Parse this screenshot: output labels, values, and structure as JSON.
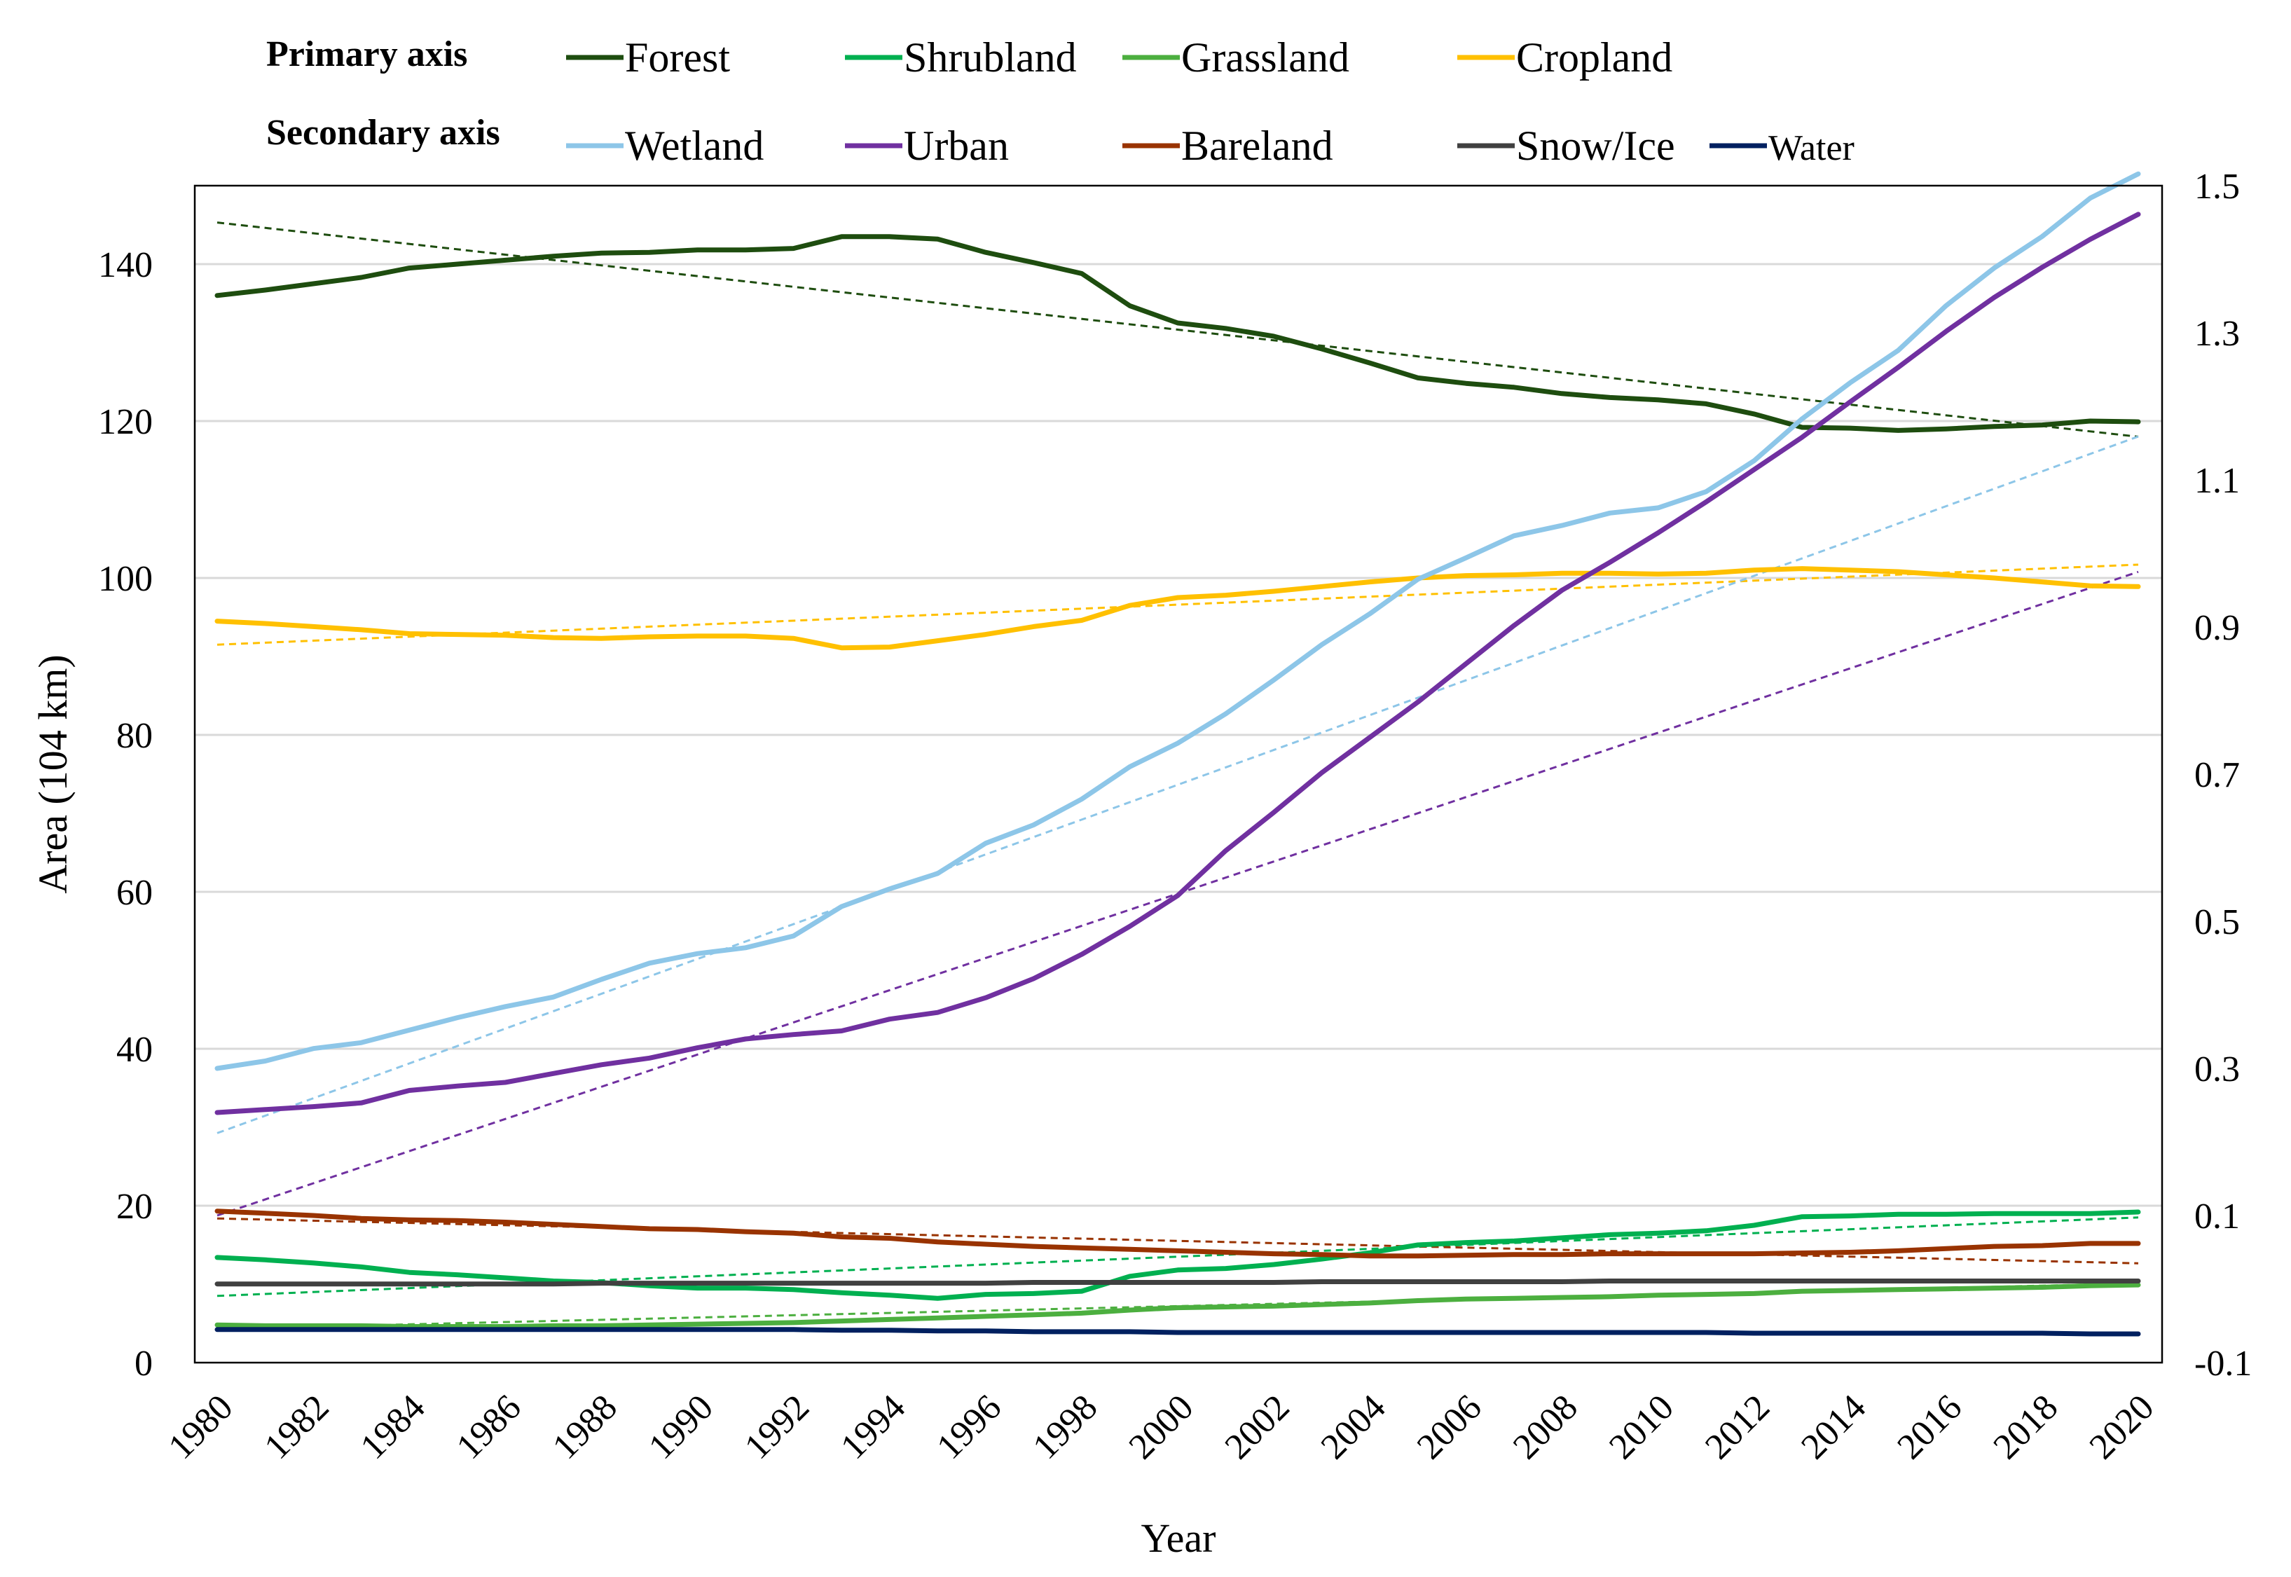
{
  "chart_data": {
    "type": "line",
    "title": "",
    "xlabel": "Year",
    "ylabel": "Area (104 km)",
    "ylim": [
      0,
      150
    ],
    "y2lim": [
      -0.1,
      1.5
    ],
    "yticks": [
      0,
      20,
      40,
      60,
      80,
      100,
      120,
      140
    ],
    "y2ticks": [
      -0.1,
      0.1,
      0.3,
      0.5,
      0.7,
      0.9,
      1.1,
      1.3,
      1.5
    ],
    "y2tick_labels": [
      "-0.1",
      "0.1",
      "0.3",
      "0.5",
      "0.7",
      "0.9",
      "1.1",
      "1.3",
      "1.5"
    ],
    "grid": true,
    "legend": {
      "placement": "top",
      "primary_heading": "Primary axis",
      "secondary_heading": "Secondary axis"
    },
    "x": [
      1980,
      1981,
      1982,
      1983,
      1984,
      1985,
      1986,
      1987,
      1988,
      1989,
      1990,
      1991,
      1992,
      1993,
      1994,
      1995,
      1996,
      1997,
      1998,
      1999,
      2000,
      2001,
      2002,
      2003,
      2004,
      2005,
      2006,
      2007,
      2008,
      2009,
      2010,
      2011,
      2012,
      2013,
      2014,
      2015,
      2016,
      2017,
      2018,
      2019,
      2020
    ],
    "xtick_labels": [
      "1980",
      "1982",
      "1984",
      "1986",
      "1988",
      "1990",
      "1992",
      "1994",
      "1996",
      "1998",
      "2000",
      "2002",
      "2004",
      "2006",
      "2008",
      "2010",
      "2012",
      "2014",
      "2016",
      "2018",
      "2020"
    ],
    "series": [
      {
        "name": "Forest",
        "axis": "primary",
        "color": "#1e4d0f",
        "legend_row": 0,
        "legend_col": 0,
        "values": [
          136.0,
          136.7,
          137.5,
          138.3,
          139.5,
          140.0,
          140.5,
          141.0,
          141.4,
          141.5,
          141.8,
          141.8,
          142.0,
          143.5,
          143.5,
          143.2,
          141.5,
          140.2,
          138.8,
          134.7,
          132.5,
          131.8,
          130.8,
          129.2,
          127.4,
          125.5,
          124.8,
          124.3,
          123.5,
          123.0,
          122.7,
          122.2,
          120.9,
          119.2,
          119.1,
          118.8,
          119.0,
          119.3,
          119.5,
          120.0,
          119.9
        ],
        "trend": [
          145.3,
          118.0
        ]
      },
      {
        "name": "Shrubland",
        "axis": "primary",
        "color": "#00b050",
        "legend_row": 0,
        "legend_col": 1,
        "values": [
          13.4,
          13.1,
          12.7,
          12.2,
          11.5,
          11.2,
          10.8,
          10.4,
          10.2,
          9.8,
          9.5,
          9.5,
          9.3,
          8.9,
          8.6,
          8.2,
          8.7,
          8.8,
          9.1,
          11.0,
          11.8,
          12.0,
          12.5,
          13.2,
          14.0,
          15.0,
          15.3,
          15.5,
          15.9,
          16.3,
          16.5,
          16.8,
          17.5,
          18.6,
          18.7,
          18.9,
          18.9,
          19.0,
          19.0,
          19.0,
          19.2
        ],
        "trend": [
          8.5,
          18.5
        ]
      },
      {
        "name": "Grassland",
        "axis": "primary",
        "color": "#4caf3f",
        "legend_row": 0,
        "legend_col": 2,
        "values": [
          4.8,
          4.7,
          4.7,
          4.7,
          4.6,
          4.6,
          4.6,
          4.7,
          4.7,
          4.8,
          4.9,
          5.0,
          5.1,
          5.3,
          5.5,
          5.7,
          5.9,
          6.1,
          6.3,
          6.7,
          7.0,
          7.1,
          7.2,
          7.4,
          7.6,
          7.9,
          8.1,
          8.2,
          8.3,
          8.4,
          8.6,
          8.7,
          8.8,
          9.1,
          9.2,
          9.3,
          9.4,
          9.5,
          9.6,
          9.8,
          9.9
        ],
        "trend": [
          4.3,
          10.1
        ]
      },
      {
        "name": "Cropland",
        "axis": "primary",
        "color": "#ffc000",
        "legend_row": 0,
        "legend_col": 3,
        "values": [
          94.5,
          94.2,
          93.8,
          93.4,
          92.9,
          92.8,
          92.7,
          92.4,
          92.3,
          92.5,
          92.6,
          92.6,
          92.3,
          91.1,
          91.2,
          92.0,
          92.8,
          93.8,
          94.6,
          96.5,
          97.5,
          97.8,
          98.3,
          98.9,
          99.5,
          100.0,
          100.3,
          100.4,
          100.6,
          100.6,
          100.5,
          100.6,
          101.0,
          101.2,
          101.0,
          100.8,
          100.4,
          100.0,
          99.5,
          99.0,
          98.9
        ],
        "trend": [
          91.5,
          101.7
        ]
      },
      {
        "name": "Wetland",
        "axis": "secondary",
        "color": "#8dc6e8",
        "legend_row": 1,
        "legend_col": 0,
        "values": [
          0.3,
          0.31,
          0.327,
          0.335,
          0.352,
          0.369,
          0.384,
          0.397,
          0.421,
          0.443,
          0.456,
          0.464,
          0.48,
          0.52,
          0.544,
          0.565,
          0.606,
          0.631,
          0.666,
          0.71,
          0.742,
          0.782,
          0.828,
          0.876,
          0.918,
          0.965,
          0.994,
          1.024,
          1.038,
          1.055,
          1.062,
          1.084,
          1.126,
          1.183,
          1.232,
          1.276,
          1.337,
          1.388,
          1.431,
          1.483,
          1.516
        ],
        "trend": [
          0.212,
          1.159
        ]
      },
      {
        "name": "Urban",
        "axis": "secondary",
        "color": "#7030a0",
        "legend_row": 1,
        "legend_col": 1,
        "values": [
          0.24,
          0.244,
          0.248,
          0.253,
          0.27,
          0.276,
          0.281,
          0.293,
          0.305,
          0.314,
          0.328,
          0.34,
          0.346,
          0.351,
          0.367,
          0.376,
          0.396,
          0.422,
          0.455,
          0.493,
          0.535,
          0.596,
          0.648,
          0.702,
          0.75,
          0.798,
          0.85,
          0.902,
          0.95,
          0.988,
          1.028,
          1.07,
          1.114,
          1.158,
          1.206,
          1.253,
          1.302,
          1.348,
          1.389,
          1.427,
          1.461
        ],
        "trend": [
          0.1,
          0.975
        ]
      },
      {
        "name": "Bareland",
        "axis": "secondary",
        "color": "#993300",
        "legend_row": 1,
        "legend_col": 2,
        "values": [
          0.106,
          0.103,
          0.1,
          0.096,
          0.094,
          0.093,
          0.091,
          0.088,
          0.085,
          0.082,
          0.081,
          0.078,
          0.076,
          0.071,
          0.069,
          0.064,
          0.061,
          0.058,
          0.056,
          0.054,
          0.052,
          0.05,
          0.048,
          0.047,
          0.045,
          0.045,
          0.046,
          0.047,
          0.047,
          0.048,
          0.048,
          0.048,
          0.048,
          0.049,
          0.05,
          0.052,
          0.055,
          0.058,
          0.059,
          0.062,
          0.062
        ],
        "trend": [
          0.096,
          0.035
        ]
      },
      {
        "name": "Snow/Ice",
        "axis": "secondary",
        "color": "#404040",
        "legend_row": 1,
        "legend_col": 3,
        "values": [
          0.007,
          0.007,
          0.007,
          0.007,
          0.007,
          0.007,
          0.007,
          0.007,
          0.008,
          0.008,
          0.008,
          0.008,
          0.008,
          0.008,
          0.008,
          0.008,
          0.008,
          0.009,
          0.009,
          0.009,
          0.009,
          0.009,
          0.009,
          0.01,
          0.01,
          0.01,
          0.01,
          0.01,
          0.01,
          0.011,
          0.011,
          0.011,
          0.011,
          0.011,
          0.011,
          0.011,
          0.011,
          0.011,
          0.011,
          0.011,
          0.011
        ],
        "trend": [
          0.007,
          0.011
        ]
      },
      {
        "name": "Water",
        "axis": "secondary",
        "color": "#002060",
        "legend_row": 1,
        "legend_col": 4,
        "values": [
          -0.055,
          -0.055,
          -0.055,
          -0.055,
          -0.055,
          -0.055,
          -0.055,
          -0.055,
          -0.055,
          -0.055,
          -0.055,
          -0.055,
          -0.055,
          -0.056,
          -0.056,
          -0.057,
          -0.057,
          -0.058,
          -0.058,
          -0.058,
          -0.059,
          -0.059,
          -0.059,
          -0.059,
          -0.059,
          -0.059,
          -0.059,
          -0.059,
          -0.059,
          -0.059,
          -0.059,
          -0.059,
          -0.06,
          -0.06,
          -0.06,
          -0.06,
          -0.06,
          -0.06,
          -0.06,
          -0.061,
          -0.061
        ],
        "trend": [
          -0.054,
          -0.061
        ]
      }
    ]
  }
}
